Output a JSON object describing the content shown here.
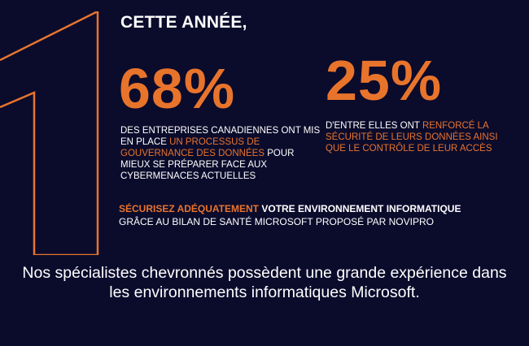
{
  "header": {
    "title": "CETTE ANNÉE,"
  },
  "stats": [
    {
      "value": "68%",
      "text_before": "DES ENTREPRISES CANADIENNES ONT MIS EN PLACE ",
      "text_highlight": "UN PROCESSUS DE GOUVERNANCE DES DONNÉES",
      "text_after": " POUR MIEUX SE PRÉPARER FACE AUX CYBERMENACES ACTUELLES"
    },
    {
      "value": "25%",
      "text_before": "D'ENTRE ELLES ONT ",
      "text_highlight": "RENFORCÉ LA SÉCURITÉ DE LEURS DONNÉES AINSI QUE LE CONTRÔLE DE LEUR ACCÈS",
      "text_after": ""
    }
  ],
  "cta": {
    "highlight": "SÉCURISEZ ADÉQUATEMENT",
    "line1_rest": " VOTRE ENVIRONNEMENT INFORMATIQUE",
    "line2": "GRÂCE AU BILAN DE SANTÉ MICROSOFT PROPOSÉ PAR NOVIPRO"
  },
  "footer": {
    "text": "Nos spécialistes chevronnés possèdent une grande expérience dans les environnements informatiques Microsoft."
  },
  "colors": {
    "accent": "#e8742c",
    "background": "#0b0b2c",
    "text": "#ffffff"
  }
}
